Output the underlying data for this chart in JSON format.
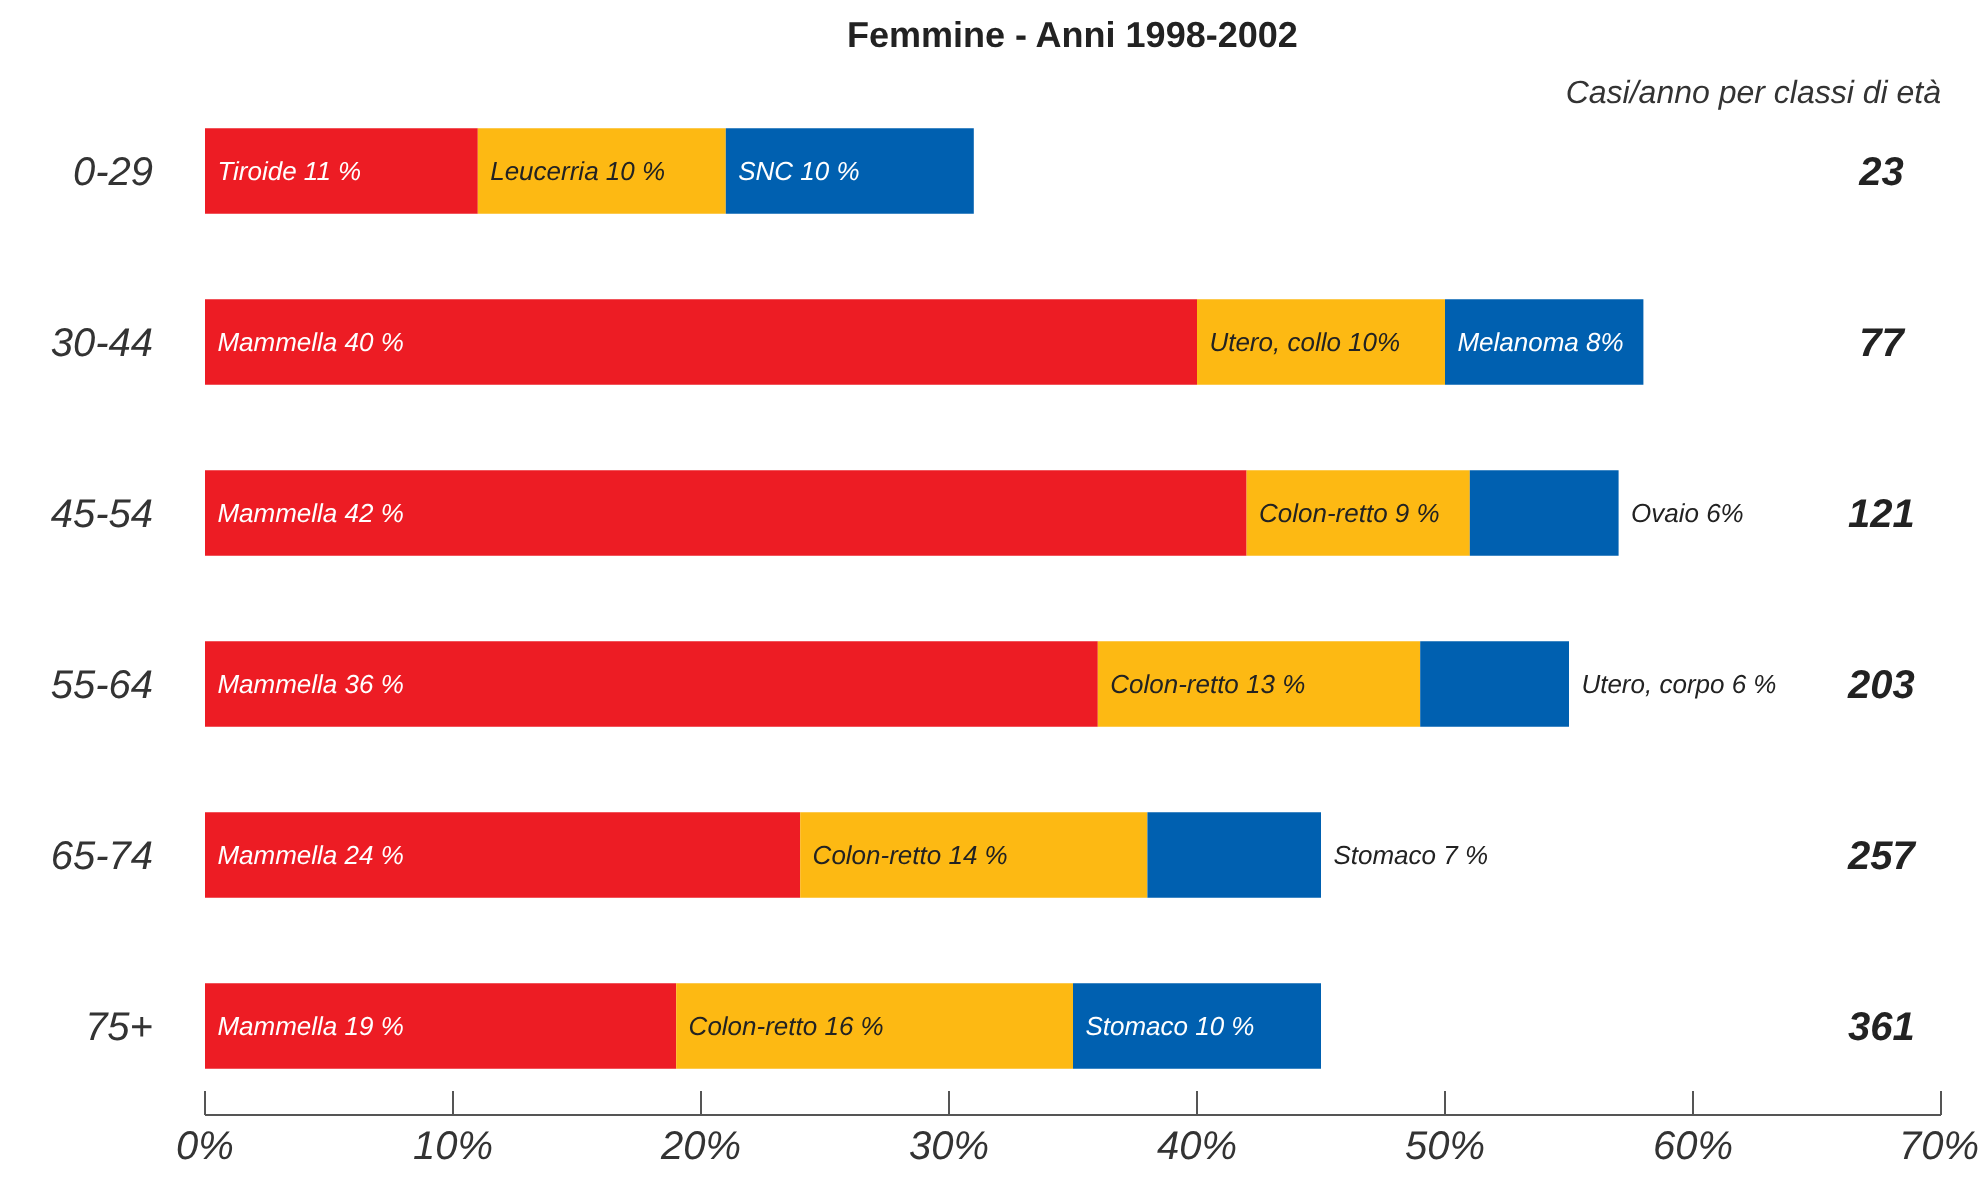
{
  "chart_data": {
    "type": "bar",
    "orientation": "horizontal",
    "stacked": true,
    "title": "Femmine - Anni 1998-2002",
    "categories": [
      "0-29",
      "30-44",
      "45-54",
      "55-64",
      "65-74",
      "75+"
    ],
    "series": [
      {
        "color": "#ed1c24",
        "values": [
          11,
          40,
          42,
          36,
          24,
          19
        ],
        "value_labels": [
          "Tiroide 11 %",
          "Mammella 40 %",
          "Mammella 42 %",
          "Mammella 36 %",
          "Mammella 24 %",
          "Mammella 19 %"
        ]
      },
      {
        "color": "#fdb913",
        "values": [
          10,
          10,
          9,
          13,
          14,
          16
        ],
        "value_labels": [
          "Leucerria 10 %",
          "Utero, collo 10%",
          "Colon-retto 9 %",
          "Colon-retto 13 %",
          "Colon-retto 14 %",
          "Colon-retto 16 %"
        ]
      },
      {
        "color": "#0060b0",
        "values": [
          10,
          8,
          6,
          6,
          7,
          10
        ],
        "value_labels": [
          "SNC   10 %",
          "Melanoma 8%",
          "Ovaio  6%",
          "Utero, corpo 6 %",
          "Stomaco  7 %",
          "Stomaco  10 %"
        ]
      }
    ],
    "xlim": [
      0,
      70
    ],
    "xticks": [
      {
        "value": 0,
        "label": "0%"
      },
      {
        "value": 10,
        "label": "10%"
      },
      {
        "value": 20,
        "label": "20%"
      },
      {
        "value": 30,
        "label": "30%"
      },
      {
        "value": 40,
        "label": "40%"
      },
      {
        "value": 50,
        "label": "50%"
      },
      {
        "value": 60,
        "label": "60%"
      },
      {
        "value": 70,
        "label": "70%"
      }
    ],
    "annotations": [
      "Casi/anno per classi di età",
      "23",
      "77",
      "121",
      "203",
      "257",
      "361"
    ],
    "grid": false,
    "legend": false
  }
}
